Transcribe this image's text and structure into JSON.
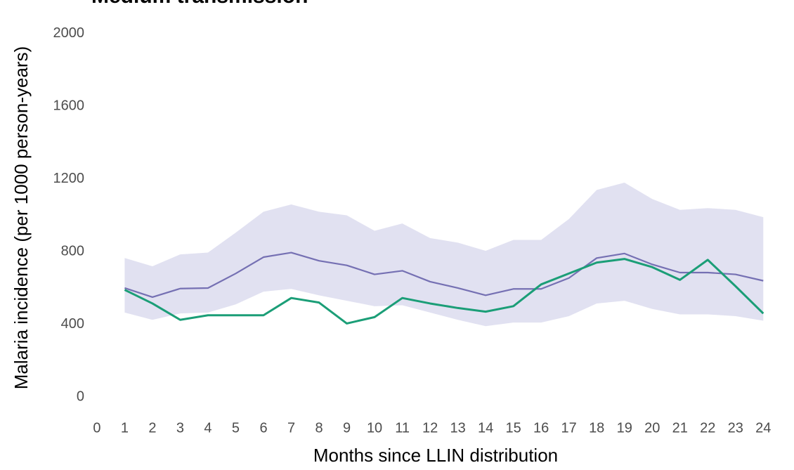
{
  "chart_data": {
    "type": "line",
    "title": "Medium transmission",
    "x_label": "Months since LLIN distribution",
    "y_label": "Malaria incidence (per 1000 person-years)",
    "x": [
      1,
      2,
      3,
      4,
      5,
      6,
      7,
      8,
      9,
      10,
      11,
      12,
      13,
      14,
      15,
      16,
      17,
      18,
      19,
      20,
      21,
      22,
      23,
      24
    ],
    "band": {
      "color": "#dcdcef",
      "upper": [
        765,
        720,
        785,
        795,
        905,
        1020,
        1060,
        1020,
        1000,
        915,
        955,
        875,
        850,
        805,
        865,
        865,
        980,
        1140,
        1180,
        1090,
        1030,
        1040,
        1030,
        990
      ],
      "lower": [
        465,
        425,
        460,
        465,
        510,
        580,
        595,
        560,
        530,
        500,
        505,
        465,
        425,
        390,
        410,
        410,
        445,
        515,
        530,
        485,
        455,
        455,
        445,
        420
      ]
    },
    "series": [
      {
        "color": "#7570b3",
        "values": [
          600,
          550,
          597,
          600,
          680,
          770,
          795,
          750,
          725,
          675,
          695,
          635,
          600,
          560,
          595,
          595,
          655,
          765,
          790,
          730,
          685,
          685,
          675,
          640
        ]
      },
      {
        "color": "#1b9e77",
        "values": [
          590,
          515,
          425,
          450,
          450,
          450,
          545,
          520,
          405,
          440,
          545,
          515,
          490,
          470,
          500,
          620,
          680,
          740,
          760,
          715,
          645,
          755,
          610,
          460
        ]
      }
    ],
    "xlim": [
      -0.2,
      24.6
    ],
    "xticks": [
      0,
      1,
      2,
      3,
      4,
      5,
      6,
      7,
      8,
      9,
      10,
      11,
      12,
      13,
      14,
      15,
      16,
      17,
      18,
      19,
      20,
      21,
      22,
      23,
      24
    ],
    "ylim": [
      -100,
      2050
    ],
    "yticks": [
      0,
      400,
      800,
      1200,
      1600,
      2000
    ],
    "grid": true
  }
}
